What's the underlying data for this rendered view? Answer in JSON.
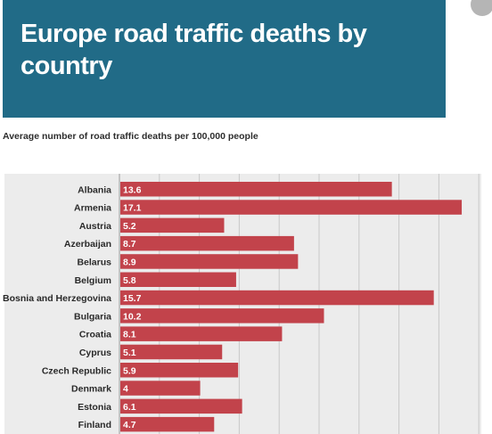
{
  "title": "Europe road traffic deaths by country",
  "subtitle": "Average number of road traffic deaths per 100,000 people",
  "colors": {
    "banner": "#216b87",
    "bar": "#c2434b",
    "plot_background": "#ececec",
    "grid": "#c8c8c8"
  },
  "chart_data": {
    "type": "bar",
    "orientation": "horizontal",
    "title": "Europe road traffic deaths by country",
    "subtitle": "Average number of road traffic deaths per 100,000 people",
    "xlabel": "",
    "ylabel": "",
    "xlim": [
      0,
      18
    ],
    "grid": true,
    "categories": [
      "Albania",
      "Armenia",
      "Austria",
      "Azerbaijan",
      "Belarus",
      "Belgium",
      "Bosnia and Herzegovina",
      "Bulgaria",
      "Croatia",
      "Cyprus",
      "Czech Republic",
      "Denmark",
      "Estonia",
      "Finland"
    ],
    "values": [
      13.6,
      17.1,
      5.2,
      8.7,
      8.9,
      5.8,
      15.7,
      10.2,
      8.1,
      5.1,
      5.9,
      4,
      6.1,
      4.7
    ],
    "value_labels": [
      "13.6",
      "17.1",
      "5.2",
      "8.7",
      "8.9",
      "5.8",
      "15.7",
      "10.2",
      "8.1",
      "5.1",
      "5.9",
      "4",
      "6.1",
      "4.7"
    ]
  }
}
